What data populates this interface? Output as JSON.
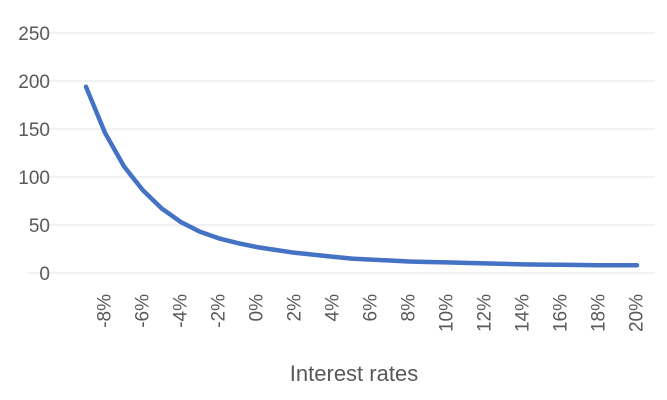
{
  "chart_data": {
    "type": "line",
    "title": "",
    "xlabel": "Interest rates",
    "ylabel": "",
    "x": [
      -0.09,
      -0.08,
      -0.07,
      -0.06,
      -0.05,
      -0.04,
      -0.03,
      -0.02,
      -0.01,
      0.0,
      0.01,
      0.02,
      0.03,
      0.04,
      0.05,
      0.06,
      0.07,
      0.08,
      0.09,
      0.1,
      0.11,
      0.12,
      0.13,
      0.14,
      0.15,
      0.16,
      0.17,
      0.18,
      0.19,
      0.2
    ],
    "x_tick_labels": [
      "-8%",
      "-6%",
      "-4%",
      "-2%",
      "0%",
      "2%",
      "4%",
      "6%",
      "8%",
      "10%",
      "12%",
      "14%",
      "16%",
      "18%",
      "20%"
    ],
    "x_tick_values": [
      -0.08,
      -0.06,
      -0.04,
      -0.02,
      0.0,
      0.02,
      0.04,
      0.06,
      0.08,
      0.1,
      0.12,
      0.14,
      0.16,
      0.18,
      0.2
    ],
    "xlim": [
      -0.09,
      0.2
    ],
    "ylim": [
      0,
      250
    ],
    "y_ticks": [
      0,
      50,
      100,
      150,
      200,
      250
    ],
    "y_tick_labels": [
      "0",
      "50",
      "100",
      "150",
      "200",
      "250"
    ],
    "grid": true,
    "legend": "none",
    "series": [
      {
        "color": "#4472c4",
        "values": [
          194,
          146,
          111,
          86,
          67,
          53,
          43,
          36,
          31,
          27,
          24,
          21,
          19,
          17,
          15,
          14,
          13,
          12,
          11.5,
          11,
          10.5,
          10,
          9.5,
          9,
          8.8,
          8.5,
          8.3,
          8.1,
          8,
          8
        ]
      }
    ]
  }
}
